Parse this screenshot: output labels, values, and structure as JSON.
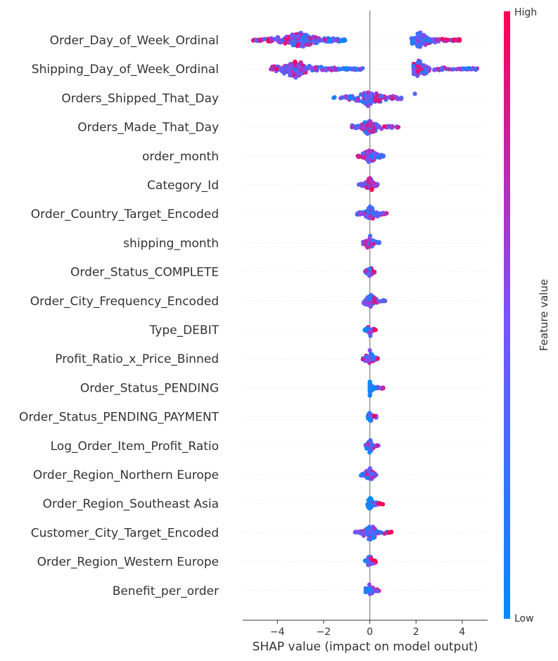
{
  "chart_data": {
    "type": "scatter",
    "subtype": "beeswarm",
    "title": "",
    "xlabel": "SHAP value (impact on model output)",
    "x_ticks": [
      -4,
      -2,
      0,
      2,
      4
    ],
    "xlim": [
      -5.5,
      5.1
    ],
    "grid": false,
    "colorbar": {
      "label": "Feature value",
      "high_label": "High",
      "low_label": "Low",
      "low_color": "#008bfb",
      "mid_color": "#7c52ff",
      "high_color": "#ff0052"
    },
    "features": [
      {
        "name": "Order_Day_of_Week_Ordinal",
        "clusters": [
          {
            "lo": -5.1,
            "hi": -1.0,
            "peak": -3.0,
            "spread": 0.55,
            "n": 300,
            "tilt": -0.3
          },
          {
            "lo": 1.8,
            "hi": 3.9,
            "peak": 2.2,
            "spread": 0.5,
            "n": 170,
            "tilt": 0.35
          }
        ]
      },
      {
        "name": "Shipping_Day_of_Week_Ordinal",
        "clusters": [
          {
            "lo": -4.3,
            "hi": -0.3,
            "peak": -3.2,
            "spread": 0.55,
            "n": 290,
            "tilt": -0.2
          },
          {
            "lo": 1.9,
            "hi": 4.7,
            "peak": 2.1,
            "spread": 0.5,
            "n": 170,
            "tilt": -0.1
          }
        ]
      },
      {
        "name": "Orders_Shipped_That_Day",
        "clusters": [
          {
            "lo": -1.6,
            "hi": 1.4,
            "peak": 0.0,
            "spread": 0.35,
            "n": 150,
            "tilt": 0.25
          },
          {
            "lo": 1.95,
            "hi": 1.95,
            "peak": 1.95,
            "spread": 0.1,
            "n": 1,
            "tilt": 0
          }
        ]
      },
      {
        "name": "Orders_Made_That_Day",
        "clusters": [
          {
            "lo": -0.8,
            "hi": 1.3,
            "peak": 0.0,
            "spread": 0.42,
            "n": 120,
            "tilt": 0.2
          }
        ]
      },
      {
        "name": "order_month",
        "clusters": [
          {
            "lo": -0.55,
            "hi": 0.6,
            "peak": 0.0,
            "spread": 0.38,
            "n": 80,
            "tilt": -0.35
          }
        ]
      },
      {
        "name": "Category_Id",
        "clusters": [
          {
            "lo": -0.5,
            "hi": 0.35,
            "peak": 0.0,
            "spread": 0.35,
            "n": 70,
            "tilt": 0.45
          }
        ]
      },
      {
        "name": "Order_Country_Target_Encoded",
        "clusters": [
          {
            "lo": -0.55,
            "hi": 0.75,
            "peak": 0.0,
            "spread": 0.35,
            "n": 80,
            "tilt": 0.25
          }
        ]
      },
      {
        "name": "shipping_month",
        "clusters": [
          {
            "lo": -0.3,
            "hi": 0.45,
            "peak": 0.0,
            "spread": 0.38,
            "n": 60,
            "tilt": 0.0
          }
        ]
      },
      {
        "name": "Order_Status_COMPLETE",
        "clusters": [
          {
            "lo": -0.2,
            "hi": 0.2,
            "peak": 0.0,
            "spread": 0.35,
            "n": 45,
            "tilt": 0.2
          }
        ]
      },
      {
        "name": "Order_City_Frequency_Encoded",
        "clusters": [
          {
            "lo": -0.3,
            "hi": 0.72,
            "peak": 0.0,
            "spread": 0.35,
            "n": 65,
            "tilt": 0.2
          }
        ]
      },
      {
        "name": "Type_DEBIT",
        "clusters": [
          {
            "lo": -0.22,
            "hi": 0.25,
            "peak": 0.0,
            "spread": 0.35,
            "n": 40,
            "tilt": 0.35
          }
        ]
      },
      {
        "name": "Profit_Ratio_x_Price_Binned",
        "clusters": [
          {
            "lo": -0.3,
            "hi": 0.45,
            "peak": 0.0,
            "spread": 0.38,
            "n": 50,
            "tilt": 0.0
          }
        ]
      },
      {
        "name": "Order_Status_PENDING",
        "clusters": [
          {
            "lo": 0.0,
            "hi": 0.6,
            "peak": 0.0,
            "spread": 0.12,
            "n": 55,
            "tilt": 0.65
          }
        ]
      },
      {
        "name": "Order_Status_PENDING_PAYMENT",
        "clusters": [
          {
            "lo": -0.1,
            "hi": 0.28,
            "peak": 0.0,
            "spread": 0.12,
            "n": 35,
            "tilt": 0.5
          }
        ]
      },
      {
        "name": "Log_Order_Item_Profit_Ratio",
        "clusters": [
          {
            "lo": -0.18,
            "hi": 0.4,
            "peak": 0.0,
            "spread": 0.25,
            "n": 40,
            "tilt": 0.4
          }
        ]
      },
      {
        "name": "Order_Region_Northern Europe",
        "clusters": [
          {
            "lo": -0.4,
            "hi": 0.32,
            "peak": 0.0,
            "spread": 0.3,
            "n": 50,
            "tilt": 0.45
          }
        ]
      },
      {
        "name": "Order_Region_Southeast Asia",
        "clusters": [
          {
            "lo": -0.1,
            "hi": 0.65,
            "peak": 0.0,
            "spread": 0.15,
            "n": 55,
            "tilt": 0.65
          }
        ]
      },
      {
        "name": "Customer_City_Target_Encoded",
        "clusters": [
          {
            "lo": -0.65,
            "hi": 0.95,
            "peak": 0.0,
            "spread": 0.35,
            "n": 90,
            "tilt": 0.15
          }
        ]
      },
      {
        "name": "Order_Region_Western Europe",
        "clusters": [
          {
            "lo": -0.25,
            "hi": 0.3,
            "peak": 0.0,
            "spread": 0.25,
            "n": 40,
            "tilt": 0.45
          }
        ]
      },
      {
        "name": "Benefit_per_order",
        "clusters": [
          {
            "lo": -0.2,
            "hi": 0.4,
            "peak": 0.0,
            "spread": 0.25,
            "n": 45,
            "tilt": 0.55
          }
        ]
      }
    ]
  }
}
